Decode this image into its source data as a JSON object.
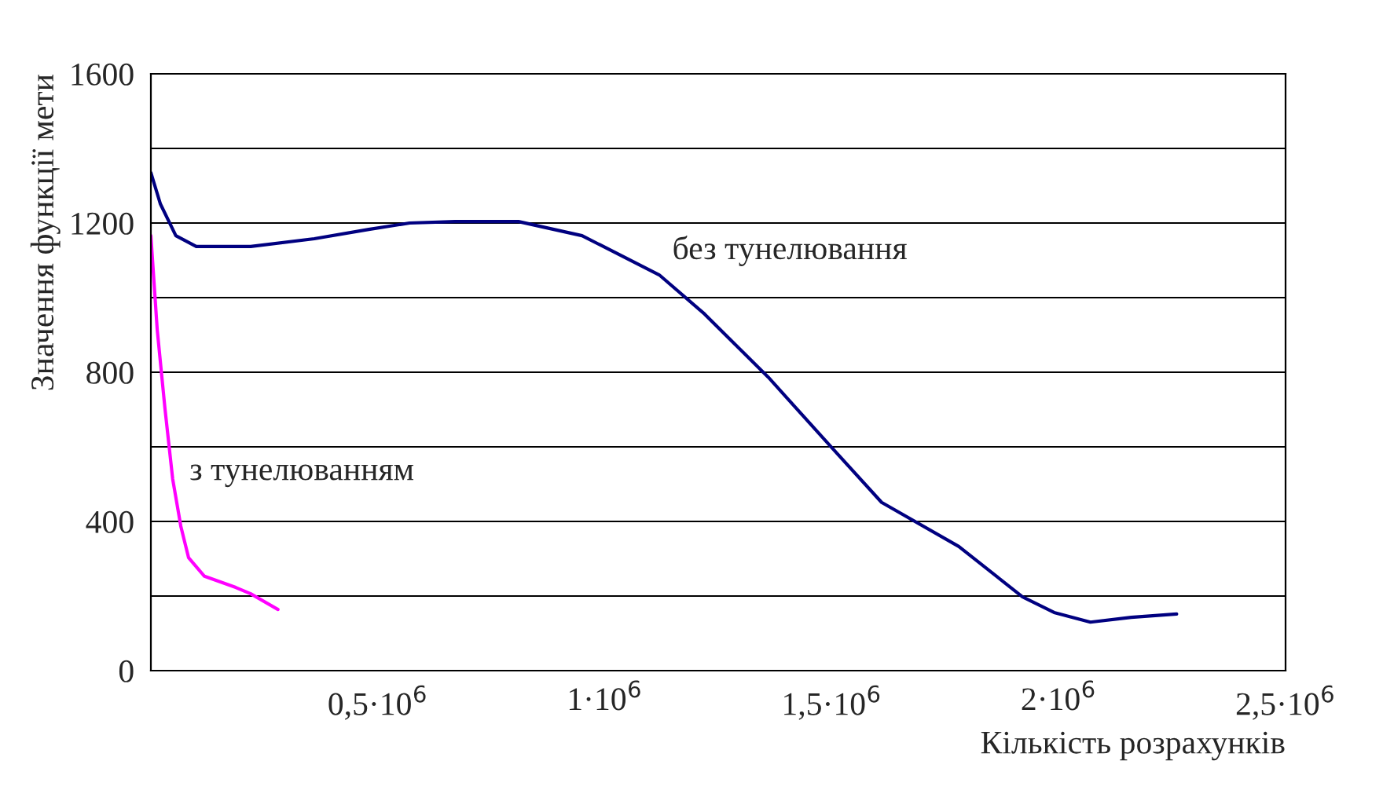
{
  "chart_data": {
    "type": "line",
    "xlabel": "Кількість розрахунків",
    "ylabel": "Значення функції мети",
    "xlim": [
      0,
      2500000
    ],
    "ylim": [
      0,
      1600
    ],
    "xticks": [
      {
        "value": 500000,
        "label": "0,5·10$^{6}$"
      },
      {
        "value": 1000000,
        "label": "1·10$^{6}$"
      },
      {
        "value": 1500000,
        "label": "1,5·10$^{6}$"
      },
      {
        "value": 2000000,
        "label": "2·10$^{6}$"
      },
      {
        "value": 2500000,
        "label": "2,5·10$^{6}$"
      }
    ],
    "yticks": [
      0,
      {
        "value": 200,
        "label": null
      },
      400,
      {
        "value": 600,
        "label": null
      },
      800,
      {
        "value": 1000,
        "label": null
      },
      1200,
      {
        "value": 1400,
        "label": null
      },
      1600
    ],
    "grid": "y",
    "marker": "none",
    "line_style": "solid",
    "series": [
      {
        "name": "без тунелювання",
        "color": "#000080",
        "x": [
          0,
          21000,
          55000,
          100000,
          220000,
          360000,
          480000,
          570000,
          670000,
          810000,
          950000,
          1120000,
          1220000,
          1360000,
          1500000,
          1610000,
          1780000,
          1920000,
          1990000,
          2070000,
          2160000,
          2260000
        ],
        "values": [
          1335,
          1251,
          1166,
          1137,
          1137,
          1158,
          1183,
          1200,
          1204,
          1204,
          1166,
          1061,
          956,
          787,
          598,
          451,
          333,
          198,
          156,
          130,
          143,
          152
        ]
      },
      {
        "name": "з тунелюванням",
        "color": "#ff00ff",
        "x": [
          0,
          14000,
          31000,
          48000,
          66000,
          83000,
          118000,
          187000,
          220000,
          280000
        ],
        "values": [
          1166,
          914,
          703,
          514,
          387,
          303,
          253,
          223,
          206,
          164
        ]
      }
    ]
  }
}
